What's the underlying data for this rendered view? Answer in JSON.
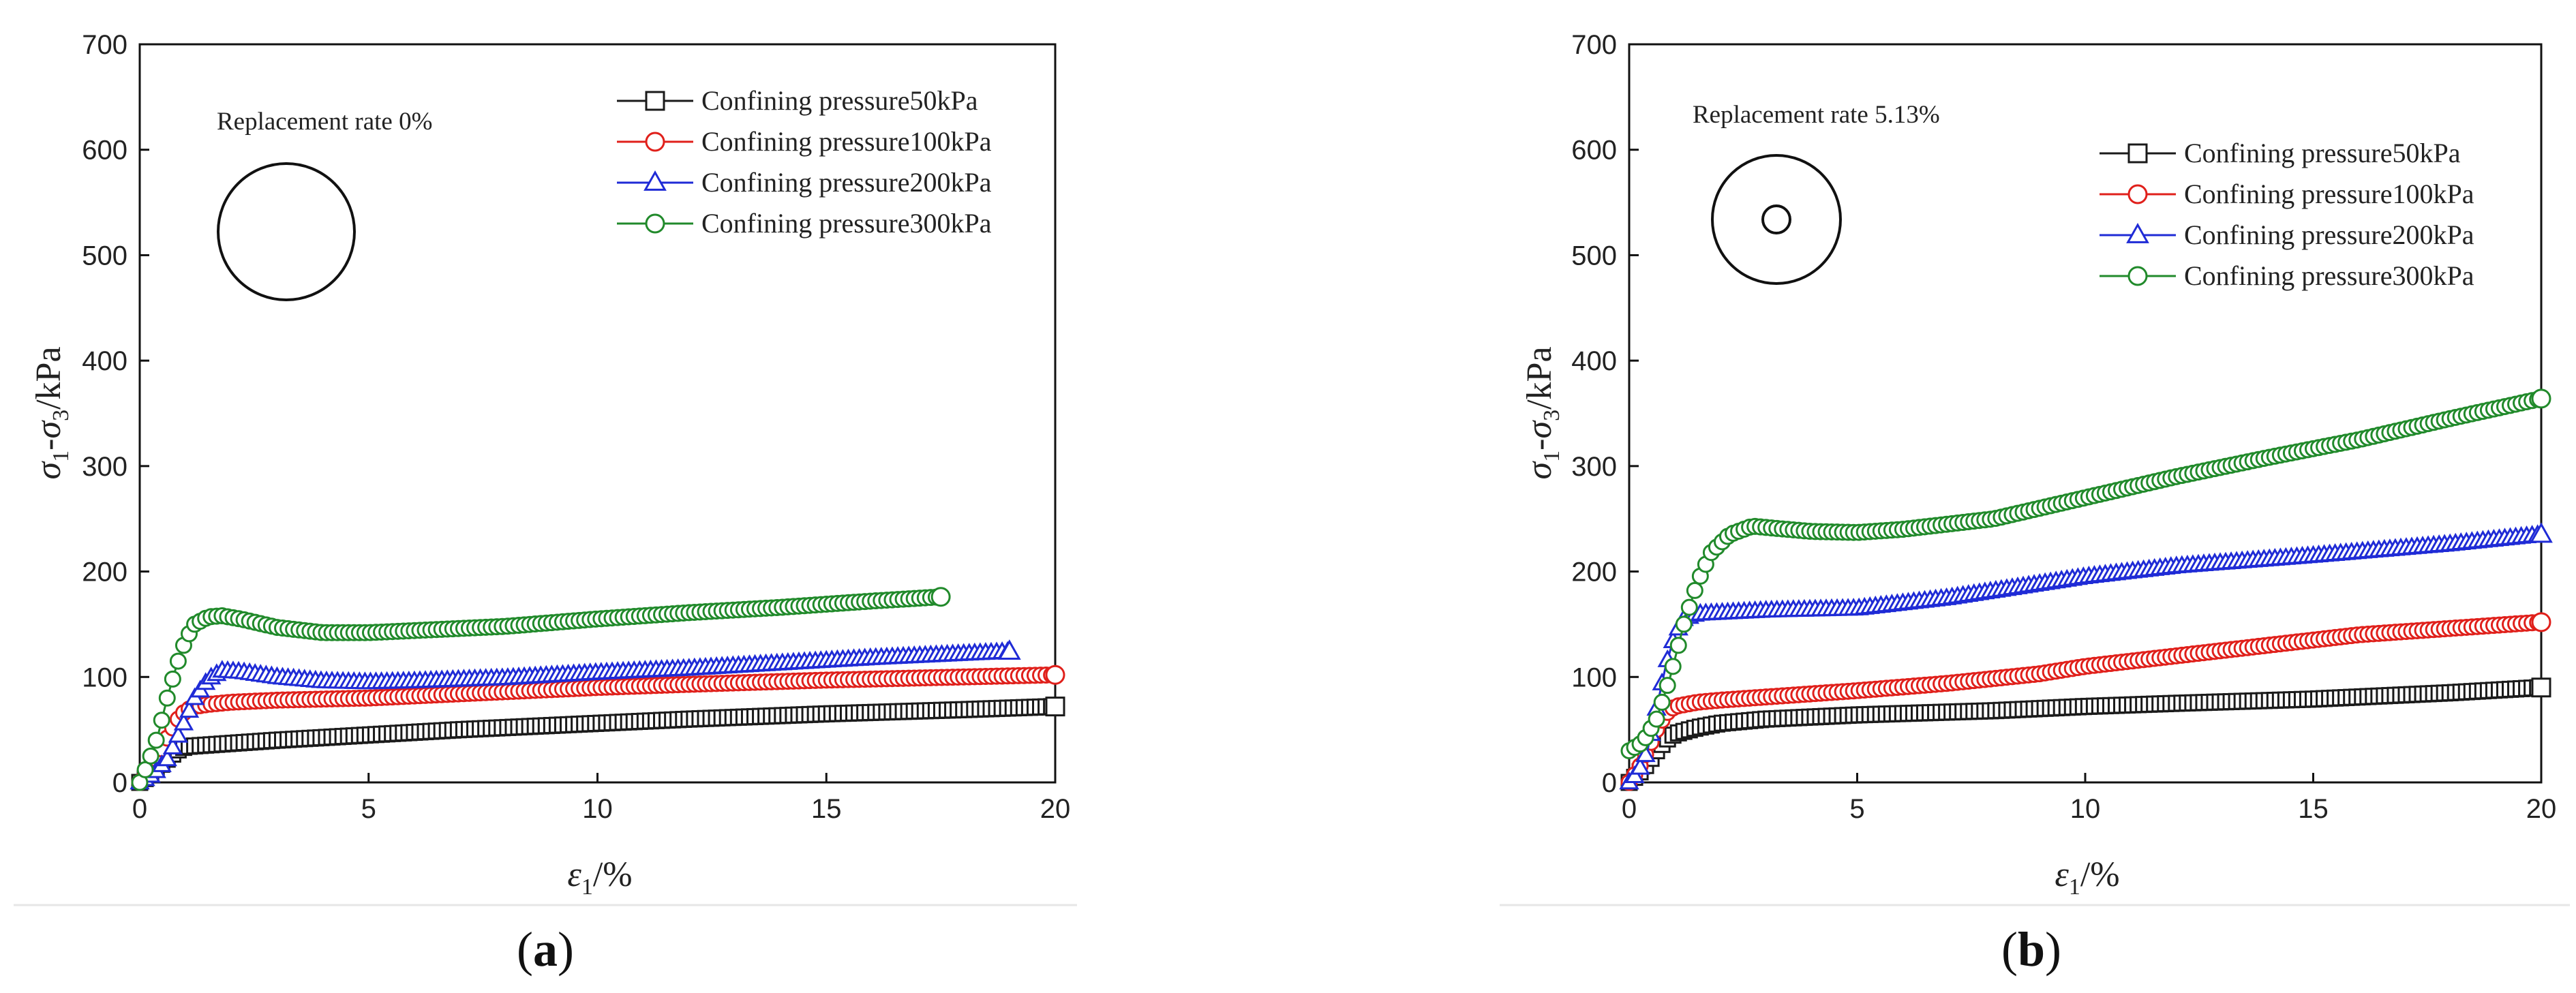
{
  "chart_data": [
    {
      "type": "line",
      "panel_label_open": "(",
      "panel_label_letter": "a",
      "panel_label_close": ")",
      "annotation": "Replacement rate 0%",
      "inset_icon": "circle-solid",
      "xlabel_symbol": "ε",
      "xlabel_sub": "1",
      "xlabel_rest": "/%",
      "ylabel_s1": "σ",
      "ylabel_sub1": "1",
      "ylabel_mid": "-σ",
      "ylabel_sub3": "3",
      "ylabel_rest": "/kPa",
      "xlim": [
        0,
        20
      ],
      "ylim": [
        0,
        700
      ],
      "xticks": [
        "0",
        "5",
        "10",
        "15",
        "20"
      ],
      "yticks": [
        "0",
        "100",
        "200",
        "300",
        "400",
        "500",
        "600",
        "700"
      ],
      "legend": "top-right",
      "series": [
        {
          "name": "Confining pressure50kPa",
          "marker": "square",
          "color": "#1a1a1a",
          "points": [
            [
              0,
              0
            ],
            [
              0.2,
              6
            ],
            [
              0.4,
              14
            ],
            [
              0.6,
              22
            ],
            [
              0.8,
              30
            ],
            [
              1,
              34
            ],
            [
              2,
              37
            ],
            [
              3,
              40
            ],
            [
              5,
              45
            ],
            [
              7,
              50
            ],
            [
              10,
              56
            ],
            [
              12,
              60
            ],
            [
              15,
              65
            ],
            [
              18,
              69
            ],
            [
              20,
              72
            ]
          ]
        },
        {
          "name": "Confining pressure100kPa",
          "marker": "circle",
          "color": "#e0201b",
          "points": [
            [
              0,
              0
            ],
            [
              0.2,
              10
            ],
            [
              0.4,
              25
            ],
            [
              0.6,
              42
            ],
            [
              0.8,
              58
            ],
            [
              1,
              68
            ],
            [
              1.2,
              72
            ],
            [
              1.5,
              74
            ],
            [
              2,
              76
            ],
            [
              3,
              78
            ],
            [
              5,
              80
            ],
            [
              7,
              84
            ],
            [
              10,
              90
            ],
            [
              12,
              93
            ],
            [
              15,
              97
            ],
            [
              18,
              100
            ],
            [
              20,
              102
            ]
          ]
        },
        {
          "name": "Confining pressure200kPa",
          "marker": "triangle",
          "color": "#1f2bd6",
          "points": [
            [
              0,
              0
            ],
            [
              0.3,
              8
            ],
            [
              0.6,
              22
            ],
            [
              0.9,
              50
            ],
            [
              1.2,
              80
            ],
            [
              1.5,
              98
            ],
            [
              1.8,
              106
            ],
            [
              2.2,
              105
            ],
            [
              3,
              100
            ],
            [
              4,
              96
            ],
            [
              5,
              95
            ],
            [
              6,
              96
            ],
            [
              8,
              99
            ],
            [
              10,
              104
            ],
            [
              12,
              108
            ],
            [
              14,
              113
            ],
            [
              16,
              118
            ],
            [
              18,
              122
            ],
            [
              19,
              124
            ]
          ]
        },
        {
          "name": "Confining pressure300kPa",
          "marker": "circle",
          "color": "#218a2b",
          "points": [
            [
              0,
              0
            ],
            [
              0.2,
              20
            ],
            [
              0.4,
              45
            ],
            [
              0.6,
              80
            ],
            [
              0.8,
              110
            ],
            [
              1,
              135
            ],
            [
              1.2,
              150
            ],
            [
              1.5,
              157
            ],
            [
              1.8,
              158
            ],
            [
              2.2,
              155
            ],
            [
              3,
              147
            ],
            [
              4,
              142
            ],
            [
              5,
              142
            ],
            [
              6,
              144
            ],
            [
              8,
              148
            ],
            [
              10,
              155
            ],
            [
              12,
              161
            ],
            [
              14,
              166
            ],
            [
              16,
              172
            ],
            [
              17.5,
              176
            ]
          ]
        }
      ]
    },
    {
      "type": "line",
      "panel_label_open": "(",
      "panel_label_letter": "b",
      "panel_label_close": ")",
      "annotation": "Replacement rate 5.13%",
      "inset_icon": "circle-with-core",
      "xlabel_symbol": "ε",
      "xlabel_sub": "1",
      "xlabel_rest": "/%",
      "ylabel_s1": "σ",
      "ylabel_sub1": "1",
      "ylabel_mid": "-σ",
      "ylabel_sub3": "3",
      "ylabel_rest": "/kPa",
      "xlim": [
        0,
        20
      ],
      "ylim": [
        0,
        700
      ],
      "xticks": [
        "0",
        "5",
        "10",
        "15",
        "20"
      ],
      "yticks": [
        "0",
        "100",
        "200",
        "300",
        "400",
        "500",
        "600",
        "700"
      ],
      "legend": "top-right",
      "series": [
        {
          "name": "Confining pressure50kPa",
          "marker": "square",
          "color": "#1a1a1a",
          "points": [
            [
              0,
              0
            ],
            [
              0.2,
              8
            ],
            [
              0.4,
              18
            ],
            [
              0.6,
              30
            ],
            [
              0.8,
              40
            ],
            [
              1,
              46
            ],
            [
              1.5,
              52
            ],
            [
              2,
              56
            ],
            [
              3,
              60
            ],
            [
              5,
              64
            ],
            [
              8,
              68
            ],
            [
              10,
              72
            ],
            [
              12,
              75
            ],
            [
              15,
              79
            ],
            [
              18,
              85
            ],
            [
              20,
              90
            ]
          ]
        },
        {
          "name": "Confining pressure100kPa",
          "marker": "circle",
          "color": "#e0201b",
          "points": [
            [
              0,
              0
            ],
            [
              0.2,
              12
            ],
            [
              0.4,
              30
            ],
            [
              0.6,
              50
            ],
            [
              0.8,
              65
            ],
            [
              1,
              72
            ],
            [
              1.5,
              76
            ],
            [
              2,
              78
            ],
            [
              3,
              81
            ],
            [
              5,
              87
            ],
            [
              7,
              94
            ],
            [
              9,
              103
            ],
            [
              10,
              110
            ],
            [
              12,
              120
            ],
            [
              14,
              130
            ],
            [
              16,
              140
            ],
            [
              18,
              146
            ],
            [
              20,
              152
            ]
          ]
        },
        {
          "name": "Confining pressure200kPa",
          "marker": "triangle",
          "color": "#1f2bd6",
          "points": [
            [
              0,
              0
            ],
            [
              0.2,
              10
            ],
            [
              0.4,
              30
            ],
            [
              0.6,
              70
            ],
            [
              0.8,
              110
            ],
            [
              1,
              140
            ],
            [
              1.2,
              155
            ],
            [
              1.5,
              160
            ],
            [
              2,
              161
            ],
            [
              3,
              163
            ],
            [
              5,
              165
            ],
            [
              7,
              175
            ],
            [
              10,
              195
            ],
            [
              12,
              205
            ],
            [
              15,
              215
            ],
            [
              18,
              226
            ],
            [
              20,
              235
            ]
          ]
        },
        {
          "name": "Confining pressure300kPa",
          "marker": "circle",
          "color": "#218a2b",
          "points": [
            [
              0,
              30
            ],
            [
              0.3,
              38
            ],
            [
              0.6,
              60
            ],
            [
              0.9,
              100
            ],
            [
              1.2,
              150
            ],
            [
              1.5,
              190
            ],
            [
              1.8,
              218
            ],
            [
              2.2,
              235
            ],
            [
              2.7,
              243
            ],
            [
              3.2,
              241
            ],
            [
              4,
              238
            ],
            [
              5,
              237
            ],
            [
              6,
              240
            ],
            [
              8,
              250
            ],
            [
              10,
              270
            ],
            [
              12,
              290
            ],
            [
              14,
              308
            ],
            [
              16,
              325
            ],
            [
              18,
              345
            ],
            [
              20,
              364
            ]
          ]
        }
      ]
    }
  ]
}
